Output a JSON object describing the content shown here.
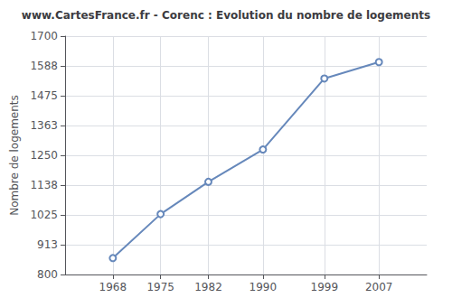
{
  "chart_data": {
    "type": "line",
    "title": "www.CartesFrance.fr - Corenc : Evolution du nombre de logements",
    "x": [
      1968,
      1975,
      1982,
      1990,
      1999,
      2007
    ],
    "values": [
      862,
      1028,
      1150,
      1272,
      1540,
      1602
    ],
    "ylabel": "Nombre de logements",
    "xlim": [
      1961,
      2014
    ],
    "xticks": [
      1968,
      1975,
      1982,
      1990,
      1999,
      2007
    ],
    "ylim": [
      800,
      1700
    ],
    "yticks": [
      800,
      913,
      1025,
      1138,
      1250,
      1363,
      1475,
      1588,
      1700
    ],
    "color": "#6688bb",
    "marker": "circle",
    "grid": true
  }
}
